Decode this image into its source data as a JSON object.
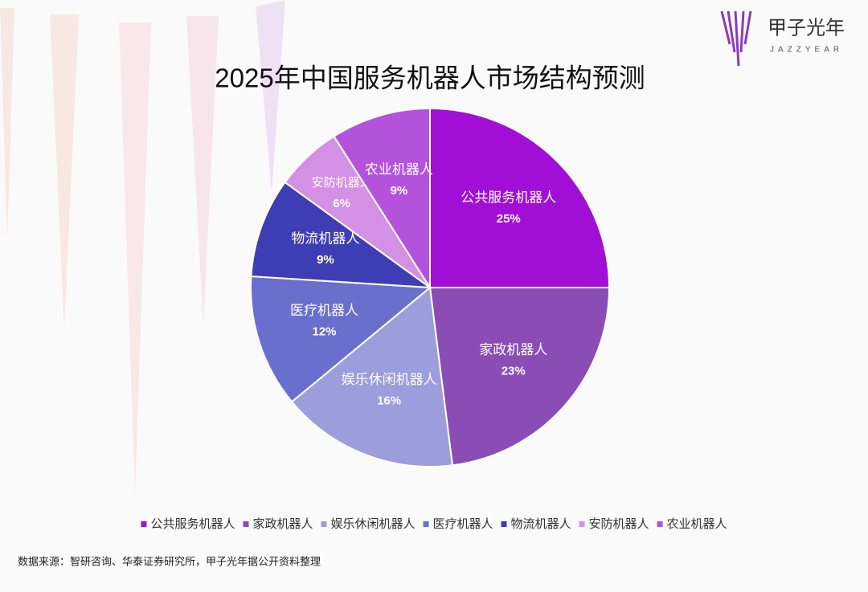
{
  "chart_data": {
    "type": "pie",
    "title": "2025年中国服务机器人市场结构预测",
    "categories": [
      "公共服务机器人",
      "家政机器人",
      "娱乐休闲机器人",
      "医疗机器人",
      "物流机器人",
      "安防机器人",
      "农业机器人"
    ],
    "values": [
      25,
      23,
      16,
      12,
      9,
      6,
      9
    ],
    "value_labels": [
      "25%",
      "23%",
      "16%",
      "12%",
      "9%",
      "6%",
      "9%"
    ],
    "colors": [
      "#a10fd6",
      "#8a4db5",
      "#9c9ddb",
      "#6a6fcd",
      "#3f3db3",
      "#d490e4",
      "#b552dc"
    ],
    "legend": "bottom"
  },
  "brand": {
    "name": "甲子光年",
    "latin": "JAZZYEAR"
  },
  "source": "数据来源：智研咨询、华泰证券研究所，甲子光年据公开资料整理"
}
